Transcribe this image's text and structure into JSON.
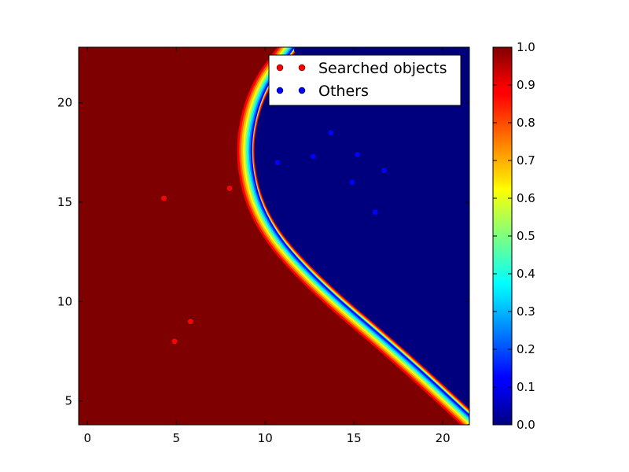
{
  "chart_data": {
    "type": "heatmap",
    "title": "",
    "xlabel": "",
    "ylabel": "",
    "xlim": [
      -0.5,
      21.5
    ],
    "ylim": [
      3.8,
      22.8
    ],
    "xticks": [
      0,
      5,
      10,
      15,
      20
    ],
    "yticks": [
      5,
      10,
      15,
      20
    ],
    "grid": false,
    "colormap": "jet",
    "colorbar": {
      "min": 0.0,
      "max": 1.0,
      "ticks": [
        "0.0",
        "0.1",
        "0.2",
        "0.3",
        "0.4",
        "0.5",
        "0.6",
        "0.7",
        "0.8",
        "0.9",
        "1.0"
      ]
    },
    "boundary": {
      "description_units": "data",
      "vertex": [
        8.7,
        17.3
      ],
      "points": [
        [
          11.3,
          22.8
        ],
        [
          9.4,
          20.5
        ],
        [
          8.7,
          17.3
        ],
        [
          9.7,
          14.0
        ],
        [
          12.6,
          11.0
        ],
        [
          17.5,
          7.3
        ],
        [
          21.5,
          4.0
        ]
      ]
    },
    "legend": {
      "placement": "top-right"
    },
    "series": [
      {
        "name": "Searched objects",
        "color": "#ff0000",
        "points": [
          [
            4.3,
            15.2
          ],
          [
            8.0,
            15.7
          ],
          [
            5.8,
            9.0
          ],
          [
            4.9,
            8.0
          ]
        ]
      },
      {
        "name": "Others",
        "color": "#0000ff",
        "points": [
          [
            13.7,
            18.5
          ],
          [
            10.7,
            17.0
          ],
          [
            12.7,
            17.3
          ],
          [
            15.2,
            17.4
          ],
          [
            14.9,
            16.0
          ],
          [
            16.7,
            16.6
          ],
          [
            16.2,
            14.5
          ]
        ]
      }
    ]
  }
}
